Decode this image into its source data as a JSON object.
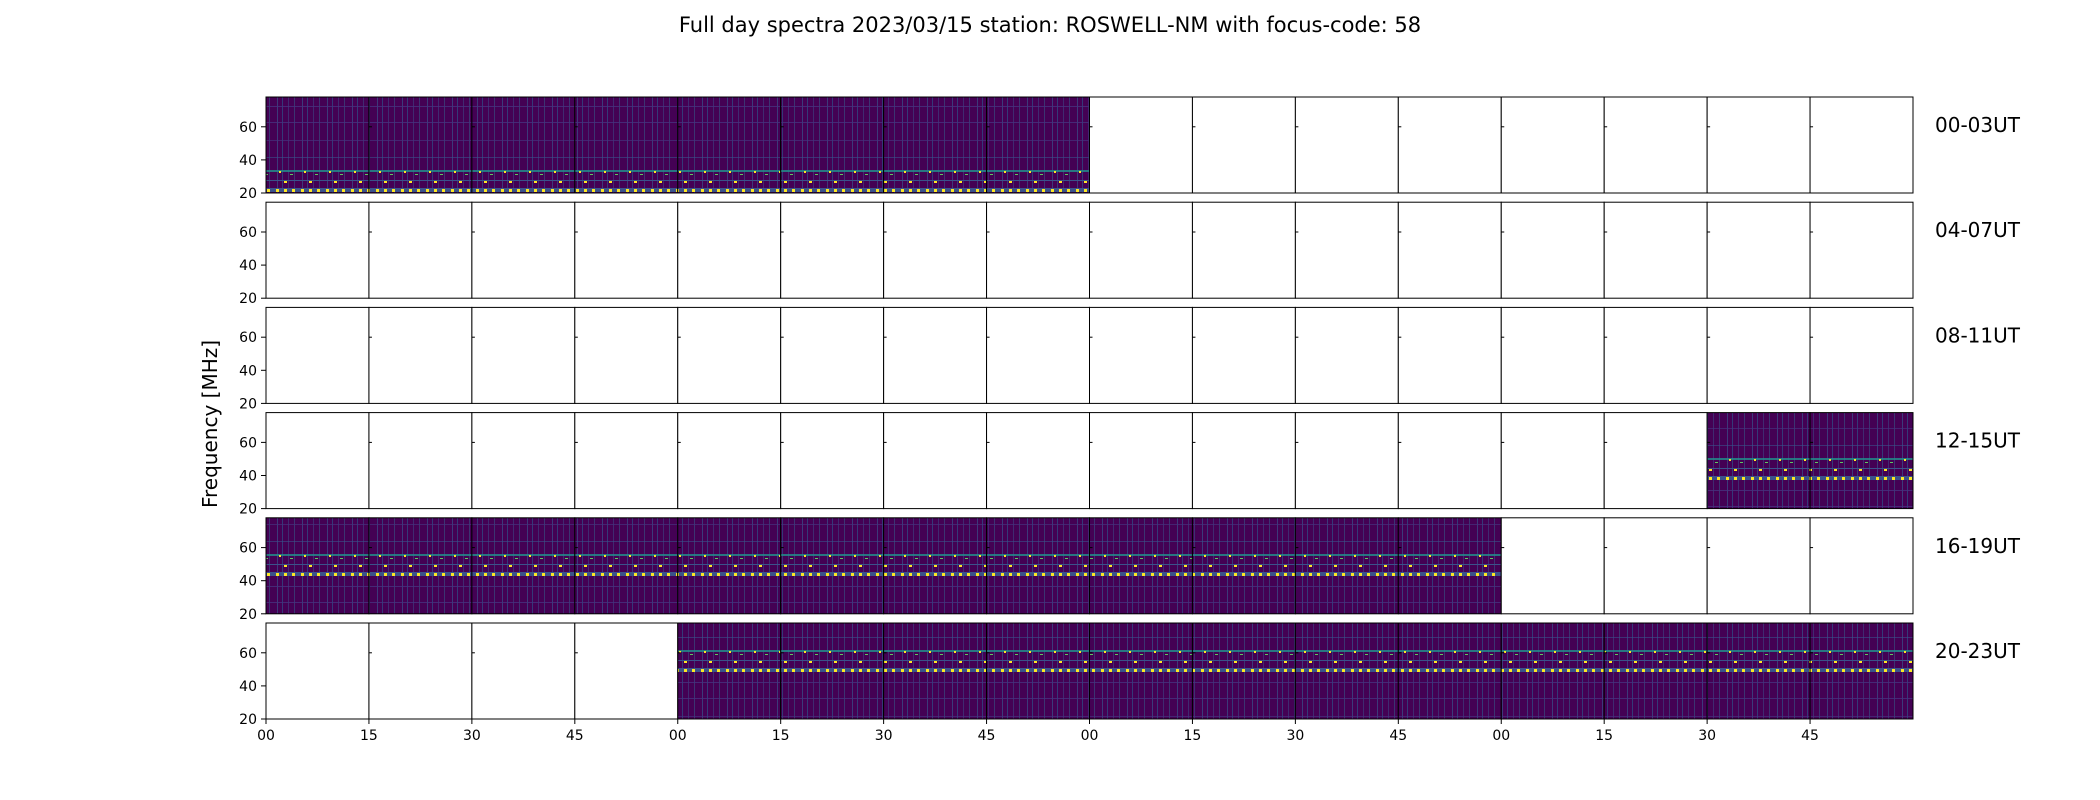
{
  "chart_data": {
    "type": "heatmap",
    "title": "Full day spectra 2023/03/15 station: ROSWELL-NM with focus-code: 58",
    "ylabel": "Frequency [MHz]",
    "xlabel": "",
    "y_ticks": [
      "20",
      "40",
      "60"
    ],
    "ylim": [
      20,
      78
    ],
    "x_ticks": [
      "00",
      "15",
      "30",
      "45",
      "00",
      "15",
      "30",
      "45",
      "00",
      "15",
      "30",
      "45",
      "00",
      "15",
      "30",
      "45"
    ],
    "panels_per_row": 16,
    "minutes_per_panel": 15,
    "colormap": [
      "#440154",
      "#3b528b",
      "#21918c",
      "#5ec962",
      "#fde725"
    ],
    "rows": [
      {
        "label": "00-03UT",
        "filled": [
          0,
          1,
          2,
          3,
          4,
          5,
          6,
          7
        ]
      },
      {
        "label": "04-07UT",
        "filled": []
      },
      {
        "label": "08-11UT",
        "filled": []
      },
      {
        "label": "12-15UT",
        "filled": [
          14,
          15
        ]
      },
      {
        "label": "16-19UT",
        "filled": [
          0,
          1,
          2,
          3,
          4,
          5,
          6,
          7,
          8,
          9,
          10,
          11
        ]
      },
      {
        "label": "20-23UT",
        "filled": [
          4,
          5,
          6,
          7,
          8,
          9,
          10,
          11,
          12,
          13,
          14,
          15
        ]
      }
    ]
  }
}
